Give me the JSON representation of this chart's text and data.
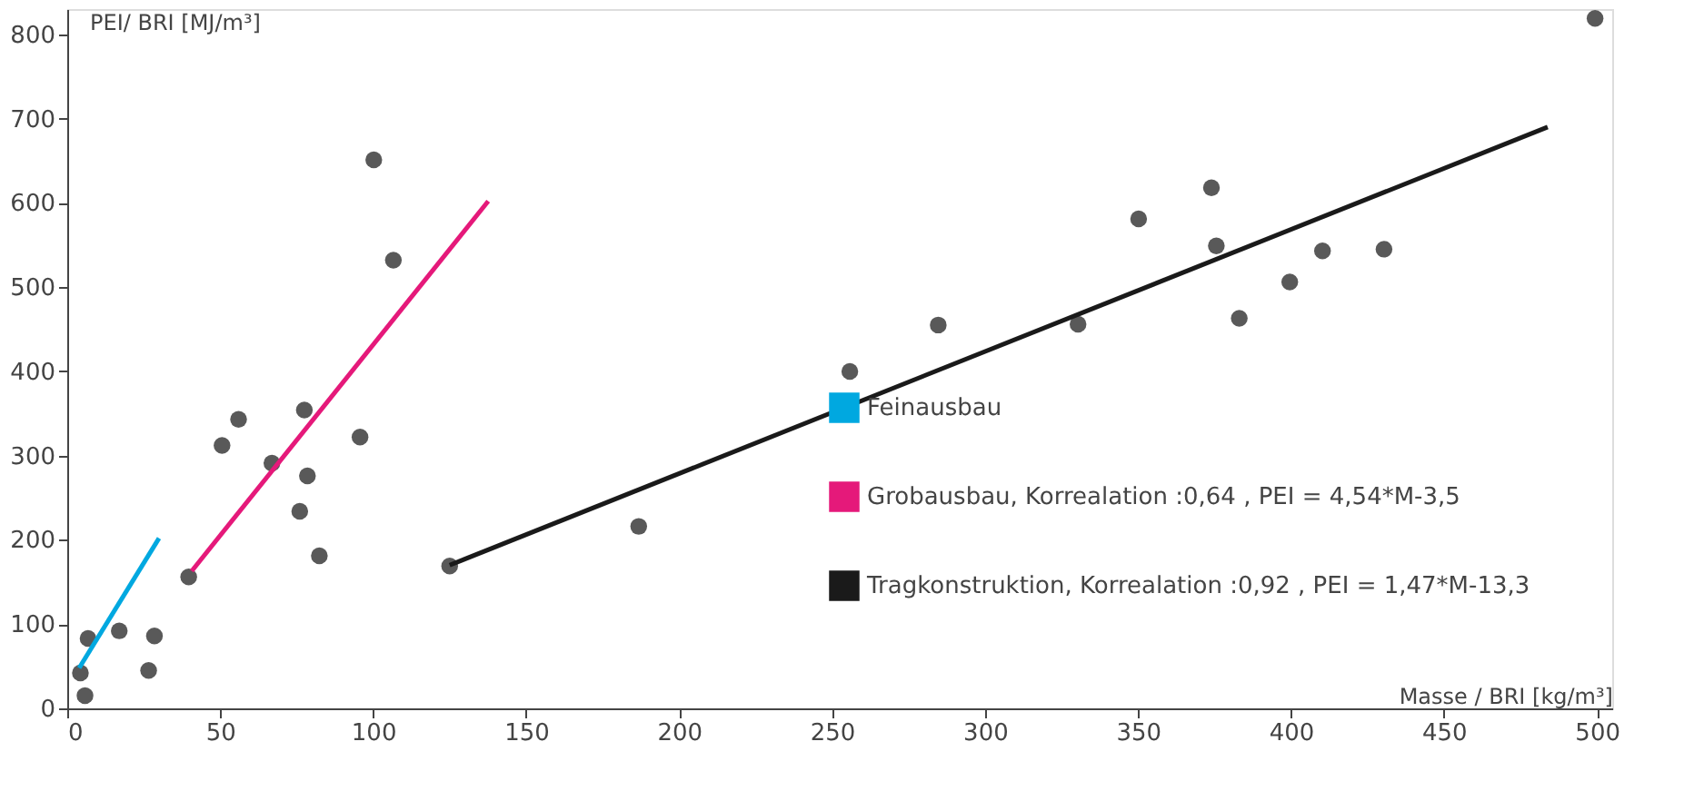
{
  "chart_data": {
    "type": "scatter",
    "xlabel": "Masse / BRI [kg/m³]",
    "ylabel": "PEI/ BRI [MJ/m³]",
    "xlim": [
      0,
      505
    ],
    "ylim": [
      0,
      830
    ],
    "xticks": [
      0,
      50,
      100,
      150,
      200,
      250,
      300,
      350,
      400,
      450,
      500
    ],
    "yticks": [
      0,
      100,
      200,
      300,
      400,
      500,
      600,
      700,
      800
    ],
    "grid": false,
    "legend": "bottom right",
    "series": [
      {
        "marker": "circle",
        "color": "#595959",
        "x": [
          4.3,
          6.8,
          5.8,
          17,
          26.6,
          28.5,
          39.7,
          50.6,
          56,
          66.9,
          77.5,
          78.5,
          76,
          82.4,
          95.7,
          100.2,
          106.6,
          125,
          186.8,
          255.8,
          284.7,
          330.4,
          350.2,
          374,
          375.6,
          383.1,
          399.6,
          410.3,
          430.4,
          499.4
        ],
        "values": [
          42,
          83,
          15,
          92,
          45,
          86,
          156,
          312,
          343,
          291,
          354,
          276,
          234,
          181,
          322,
          651,
          532,
          169,
          216,
          400,
          455,
          456,
          581,
          618,
          549,
          463,
          506,
          543,
          545,
          819
        ]
      },
      {
        "type": "line",
        "name": "Feinausbau",
        "color": "#00a8e0",
        "line_style": "solid",
        "x": [
          3.9,
          30
        ],
        "values": [
          48,
          202
        ]
      },
      {
        "type": "line",
        "name": "Grobausbau, Korrealation :0,64 , PEI = 4,54*M-3,5",
        "color": "#e5197a",
        "line_style": "solid",
        "x": [
          40.7,
          137.6
        ],
        "values": [
          163,
          602
        ]
      },
      {
        "type": "line",
        "name": "Tragkonstruktion, Korrealation :0,92 , PEI = 1,47*M-13,3",
        "color": "#1a1a1a",
        "line_style": "solid",
        "x": [
          125,
          483.9
        ],
        "values": [
          170,
          690
        ]
      }
    ]
  }
}
